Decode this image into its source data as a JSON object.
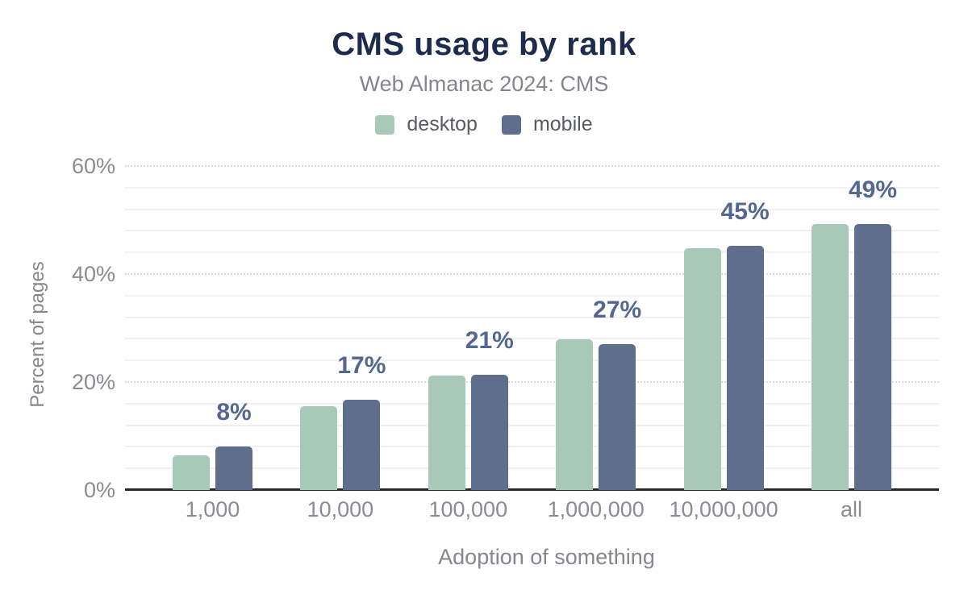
{
  "header": {
    "title": "CMS usage by rank",
    "subtitle": "Web Almanac 2024: CMS"
  },
  "legend": {
    "items": [
      {
        "label": "desktop",
        "color": "#a9c9b8"
      },
      {
        "label": "mobile",
        "color": "#5f6e8c"
      }
    ]
  },
  "colors": {
    "title": "#1d2c4d",
    "value_label": "#54678f",
    "desktop_bar": "#a9c9b8",
    "mobile_bar": "#5f6e8c"
  },
  "chart_data": {
    "type": "bar",
    "title": "CMS usage by rank",
    "subtitle": "Web Almanac 2024: CMS",
    "xlabel": "Adoption of something",
    "ylabel": "Percent of pages",
    "categories": [
      "1,000",
      "10,000",
      "100,000",
      "1,000,000",
      "10,000,000",
      "all"
    ],
    "series": [
      {
        "name": "desktop",
        "color": "#a9c9b8",
        "values": [
          6.4,
          15.5,
          21.2,
          27.9,
          44.8,
          49.3
        ]
      },
      {
        "name": "mobile",
        "color": "#5f6e8c",
        "values": [
          8.0,
          16.7,
          21.4,
          27.0,
          45.3,
          49.2
        ]
      }
    ],
    "bar_labels": [
      "8%",
      "17%",
      "21%",
      "27%",
      "45%",
      "49%"
    ],
    "ylim": [
      0,
      60
    ],
    "yticks": [
      {
        "value": 0,
        "label": "0%"
      },
      {
        "value": 20,
        "label": "20%"
      },
      {
        "value": 40,
        "label": "40%"
      },
      {
        "value": 60,
        "label": "60%"
      }
    ],
    "grid": {
      "major_every": 20,
      "minor_every": 4
    },
    "legend_position": "top"
  }
}
